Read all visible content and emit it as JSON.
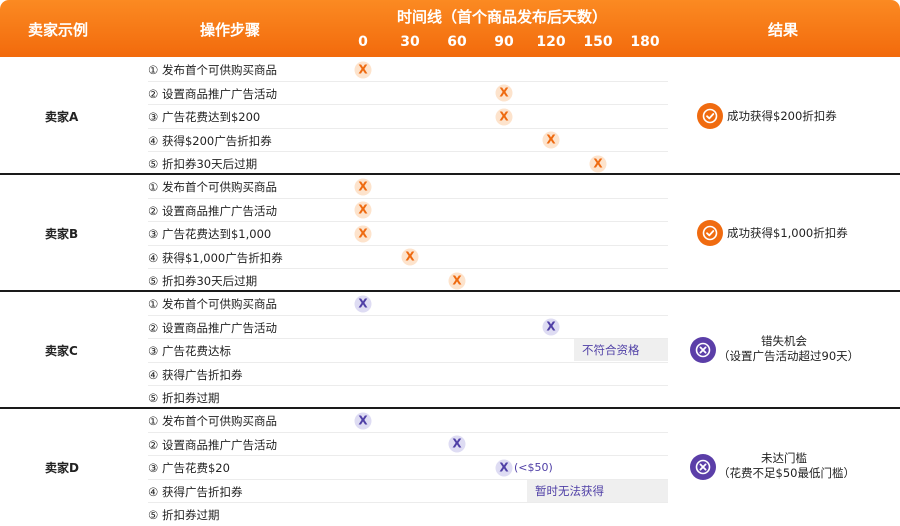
{
  "header": {
    "col_seller": "卖家示例",
    "col_steps": "操作步骤",
    "col_timeline": "时间线（首个商品发布后天数）",
    "ticks": [
      "0",
      "30",
      "60",
      "90",
      "120",
      "150",
      "180"
    ],
    "col_result": "结果"
  },
  "sellers": [
    {
      "name": "卖家A",
      "steps": [
        "① 发布首个可供购买商品",
        "② 设置商品推广广告活动",
        "③ 广告花费达到$200",
        "④ 获得$200广告折扣券",
        "⑤ 折扣券30天后过期"
      ],
      "days": [
        0,
        90,
        90,
        120,
        150
      ],
      "marker": "X",
      "marker_color": "#ee6a10",
      "result": {
        "type": "success",
        "line1": "成功获得$200折扣券",
        "line2": ""
      }
    },
    {
      "name": "卖家B",
      "steps": [
        "① 发布首个可供购买商品",
        "② 设置商品推广广告活动",
        "③ 广告花费达到$1,000",
        "④ 获得$1,000广告折扣券",
        "⑤ 折扣券30天后过期"
      ],
      "days": [
        0,
        0,
        0,
        30,
        60
      ],
      "marker": "X",
      "marker_color": "#ee6a10",
      "result": {
        "type": "success",
        "line1": "成功获得$1,000折扣券",
        "line2": ""
      }
    },
    {
      "name": "卖家C",
      "steps": [
        "① 发布首个可供购买商品",
        "② 设置商品推广广告活动",
        "③ 广告花费达标",
        "④ 获得广告折扣券",
        "⑤ 折扣券过期"
      ],
      "days": [
        0,
        120
      ],
      "marker": "X",
      "marker_color": "#4f3fa6",
      "status_label": "不符合资格",
      "result": {
        "type": "fail",
        "line1": "错失机会",
        "line2": "（设置广告活动超过90天）"
      }
    },
    {
      "name": "卖家D",
      "steps": [
        "① 发布首个可供购买商品",
        "② 设置商品推广广告活动",
        "③ 广告花费$20",
        "④ 获得广告折扣券",
        "⑤ 折扣券过期"
      ],
      "days": [
        0,
        60,
        90
      ],
      "marker": "X",
      "marker_color": "#4f3fa6",
      "marker_note": "(<$50)",
      "status_label": "暂时无法获得",
      "result": {
        "type": "fail",
        "line1": "未达门槛",
        "line2": "（花费不足$50最低门槛）"
      }
    }
  ],
  "colors": {
    "header_orange": "#f26a0c",
    "success_orange": "#f06b10",
    "fail_purple": "#5b3ea8"
  }
}
